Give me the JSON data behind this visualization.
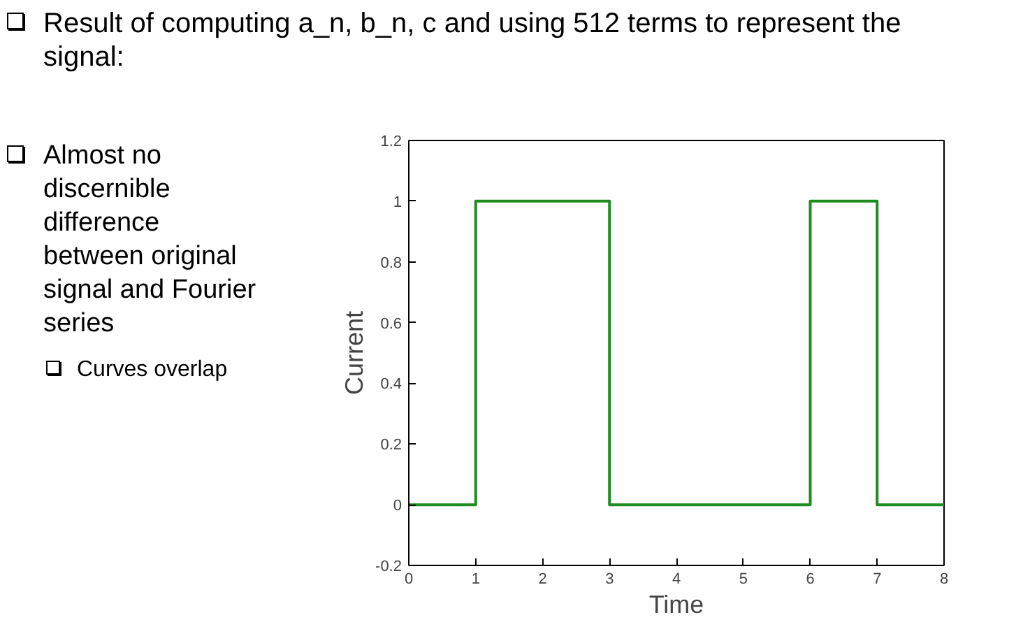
{
  "chart_data": {
    "type": "line",
    "title": "Result of computing a_n, b_n, c and using 512 terms to represent the signal:",
    "xlabel": "Time",
    "ylabel": "Current",
    "annotations": [
      "Almost no discernible difference between original signal and Fourier series",
      "Curves overlap"
    ],
    "x": [
      0,
      1,
      1,
      3,
      3,
      6,
      6,
      7,
      7,
      8
    ],
    "series": [
      {
        "color": "#1e8c1e",
        "values": [
          0,
          0,
          1,
          1,
          0,
          0,
          1,
          1,
          0,
          0
        ]
      }
    ],
    "xlim": [
      0,
      8
    ],
    "ylim": [
      -0.2,
      1.2
    ],
    "xticks": [
      0,
      1,
      2,
      3,
      4,
      5,
      6,
      7,
      8
    ],
    "yticks": [
      -0.2,
      0,
      0.2,
      0.4,
      0.6,
      0.8,
      1,
      1.2
    ],
    "grid": false,
    "marker": "none",
    "line_style": "solid"
  }
}
